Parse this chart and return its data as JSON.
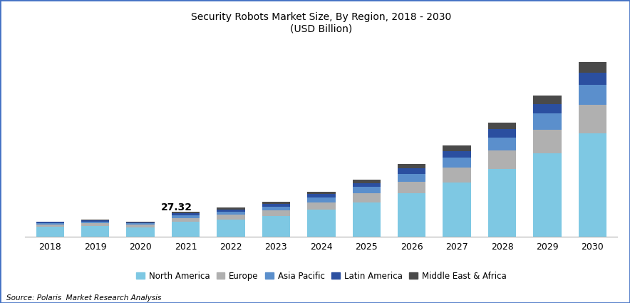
{
  "years": [
    2018,
    2019,
    2020,
    2021,
    2022,
    2023,
    2024,
    2025,
    2026,
    2027,
    2028,
    2029,
    2030
  ],
  "regions": [
    "North America",
    "Europe",
    "Asia Pacific",
    "Latin America",
    "Middle East & Africa"
  ],
  "colors": [
    "#7ec8e3",
    "#b0b0b0",
    "#5b8fcc",
    "#2b4fa0",
    "#4a4a4a"
  ],
  "data": {
    "North America": [
      10.5,
      11.5,
      10.2,
      16.5,
      19.0,
      23.0,
      30.0,
      38.0,
      48.0,
      60.0,
      75.0,
      93.0,
      115.0
    ],
    "Europe": [
      2.8,
      3.1,
      2.7,
      4.2,
      5.2,
      6.2,
      8.0,
      10.0,
      13.0,
      16.5,
      21.0,
      26.0,
      32.0
    ],
    "Asia Pacific": [
      1.8,
      2.0,
      1.7,
      3.0,
      3.5,
      4.2,
      5.5,
      7.0,
      9.0,
      11.5,
      14.5,
      18.0,
      22.5
    ],
    "Latin America": [
      0.9,
      1.0,
      0.9,
      2.0,
      2.3,
      2.8,
      3.5,
      4.5,
      5.7,
      7.2,
      9.0,
      11.0,
      13.5
    ],
    "Middle East & Africa": [
      0.72,
      0.8,
      0.7,
      1.62,
      1.9,
      2.3,
      3.0,
      3.8,
      4.8,
      6.0,
      7.5,
      9.2,
      11.5
    ]
  },
  "annotation_year": 2021,
  "annotation_text": "27.32",
  "title_line1": "Security Robots Market Size, By Region, 2018 - 2030",
  "title_line2": "(USD Billion)",
  "source_text": "Source: Polaris  Market Research Analysis",
  "background_color": "#ffffff",
  "border_color": "#4472c4",
  "ylim_max": 220
}
